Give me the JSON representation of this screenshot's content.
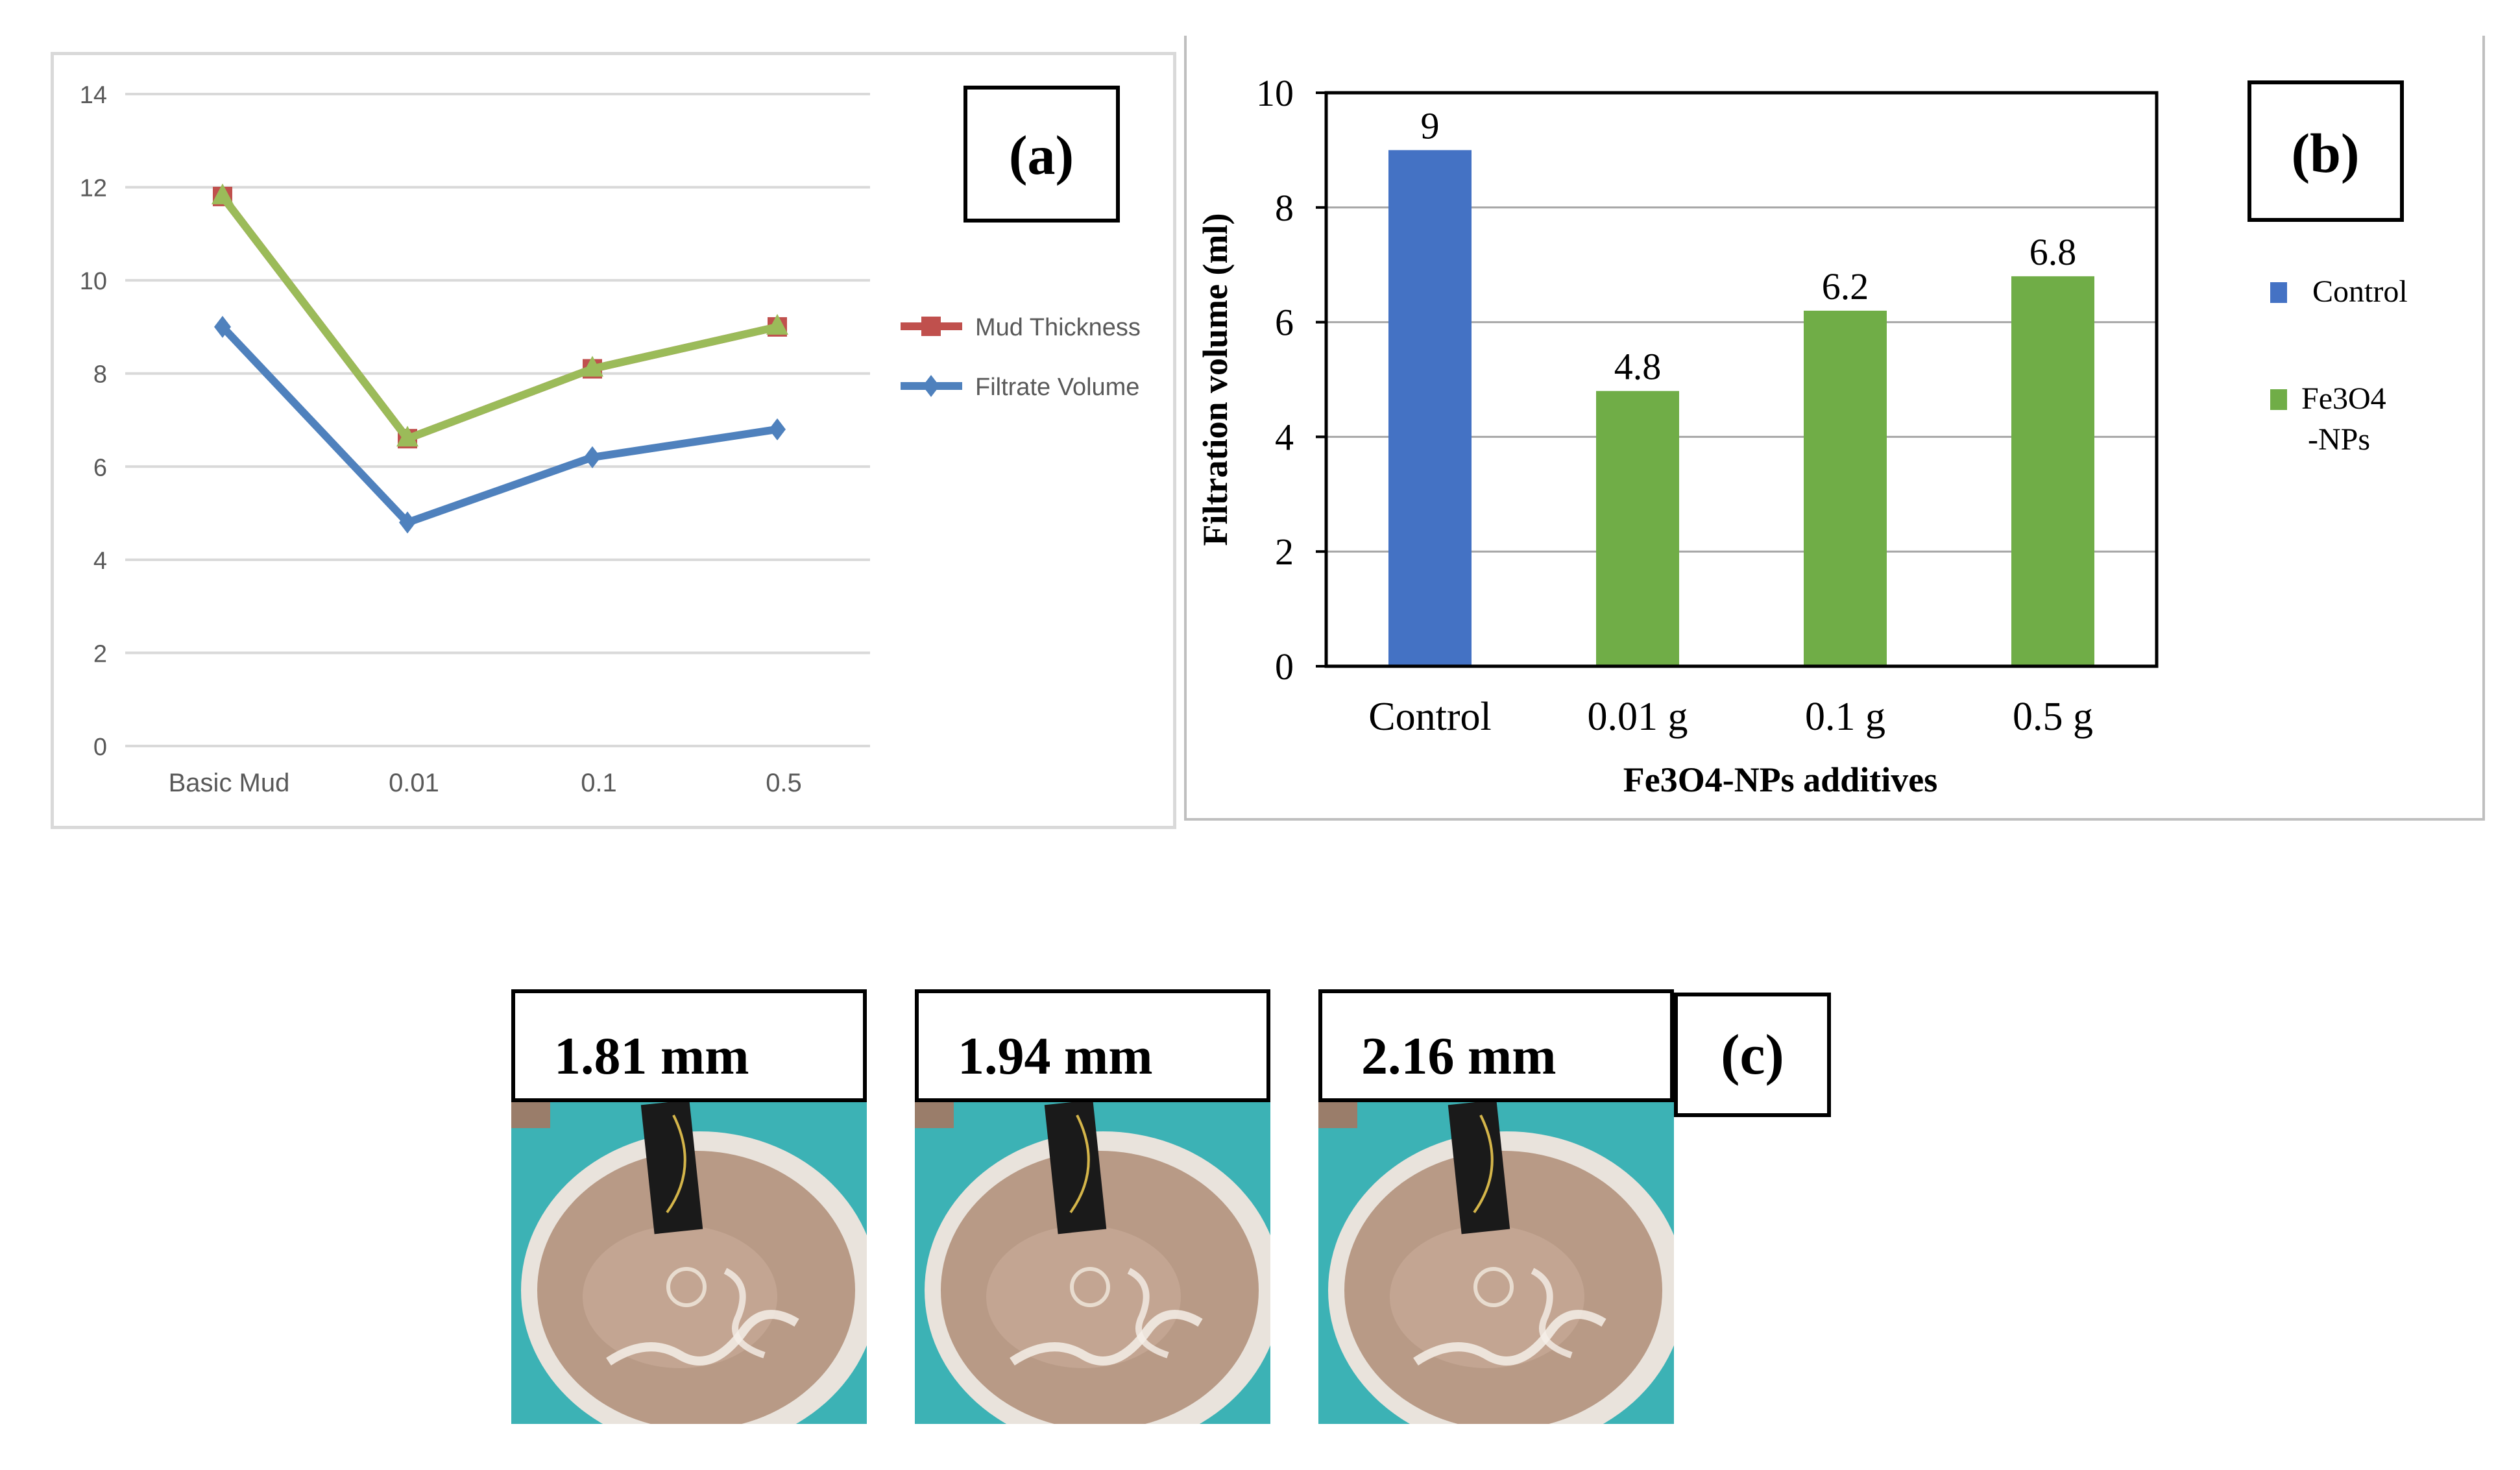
{
  "chart_data": [
    {
      "panel": "(a)",
      "type": "line",
      "categories": [
        "Basic Mud",
        "0.01",
        "0.1",
        "0.5"
      ],
      "series": [
        {
          "name": "Mud Thickness",
          "values": [
            11.8,
            6.6,
            8.1,
            9.0
          ],
          "color": "#c0504d"
        },
        {
          "name": "Filtrate Volume",
          "values": [
            9.0,
            4.8,
            6.2,
            6.8
          ],
          "color": "#4f81bd"
        }
      ],
      "overlay_series": {
        "values": [
          11.8,
          6.6,
          8.1,
          9.0
        ],
        "color": "#9bbb59"
      },
      "ylim": [
        0,
        14
      ],
      "yticks": [
        "0",
        "2",
        "4",
        "6",
        "8",
        "10",
        "12",
        "14"
      ],
      "grid": true,
      "legend": "right"
    },
    {
      "panel": "(b)",
      "type": "bar",
      "categories": [
        "Control",
        "0.01 g",
        "0.1 g",
        "0.5 g"
      ],
      "values": [
        9,
        4.8,
        6.2,
        6.8
      ],
      "value_labels": [
        "9",
        "4.8",
        "6.2",
        "6.8"
      ],
      "bar_colors": [
        "#4472c4",
        "#70ad47",
        "#70ad47",
        "#70ad47"
      ],
      "xlabel": "Fe3O4-NPs additives",
      "ylabel": "Filtration volume (ml)",
      "ylim": [
        0,
        10
      ],
      "yticks": [
        "0",
        "2",
        "4",
        "6",
        "8",
        "10"
      ],
      "grid": true,
      "legend": [
        {
          "label": "Control",
          "color": "#4472c4"
        },
        {
          "label_line1": "Fe3O4",
          "label_line2": "-NPs",
          "color": "#70ad47"
        }
      ]
    }
  ],
  "panels": {
    "a_label": "(a)",
    "b_label": "(b)",
    "c_label": "(c)"
  },
  "photos": [
    {
      "thickness": "1.81 mm"
    },
    {
      "thickness": "1.94 mm"
    },
    {
      "thickness": "2.16 mm"
    }
  ]
}
